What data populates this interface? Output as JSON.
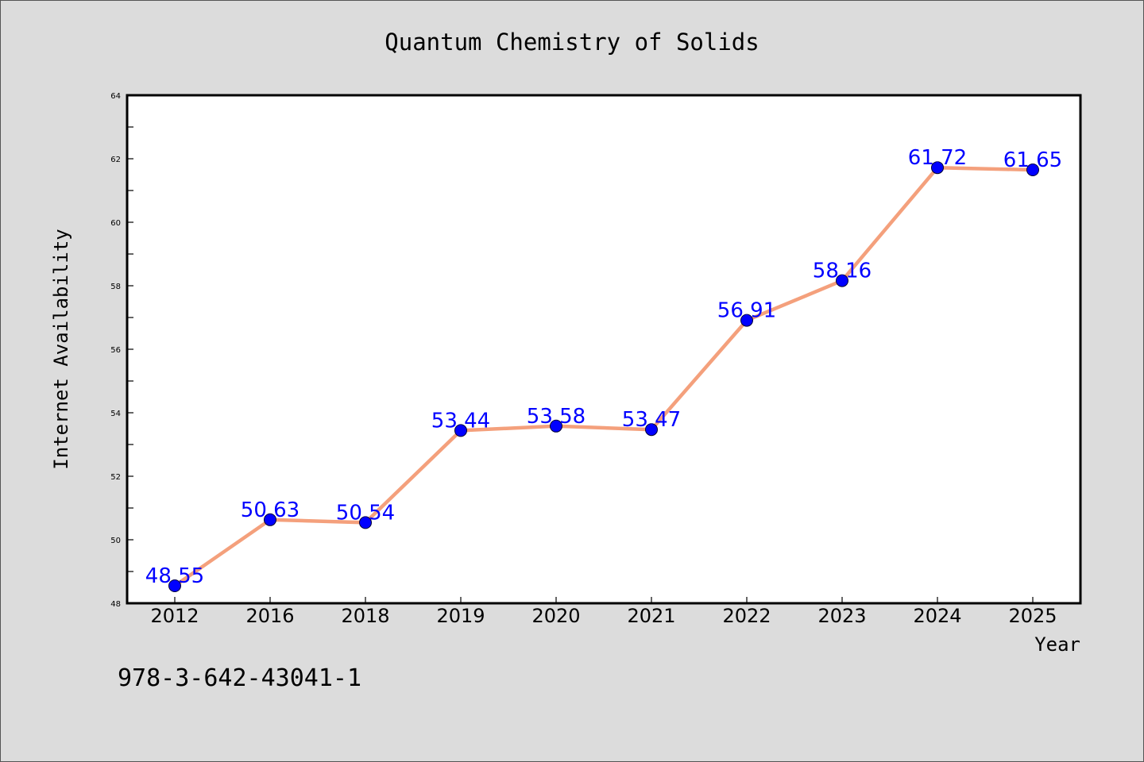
{
  "colors": {
    "background": "#dcdcdc",
    "plot_background": "#ffffff",
    "line": "#f4a07c",
    "marker": "#0000ff",
    "data_label": "#0000ff"
  },
  "footer": {
    "isbn": "978-3-642-43041-1"
  },
  "chart_data": {
    "type": "line",
    "title": "Quantum Chemistry of Solids",
    "xlabel": "Year",
    "ylabel": "Internet Availability",
    "categories": [
      "2012",
      "2016",
      "2018",
      "2019",
      "2020",
      "2021",
      "2022",
      "2023",
      "2024",
      "2025"
    ],
    "values": [
      48.55,
      50.63,
      50.54,
      53.44,
      53.58,
      53.47,
      56.91,
      58.16,
      61.72,
      61.65
    ],
    "data_labels": [
      "48.55",
      "50.63",
      "50.54",
      "53.44",
      "53.58",
      "53.47",
      "56.91",
      "58.16",
      "61.72",
      "61.65"
    ],
    "ylim": [
      48,
      64
    ],
    "y_ticks": [
      48,
      50,
      52,
      54,
      56,
      58,
      60,
      62,
      64
    ],
    "y_minor_ticks": [
      49,
      51,
      53,
      55,
      57,
      59,
      61,
      63
    ],
    "grid": false,
    "legend": "none",
    "marker": "circle"
  }
}
